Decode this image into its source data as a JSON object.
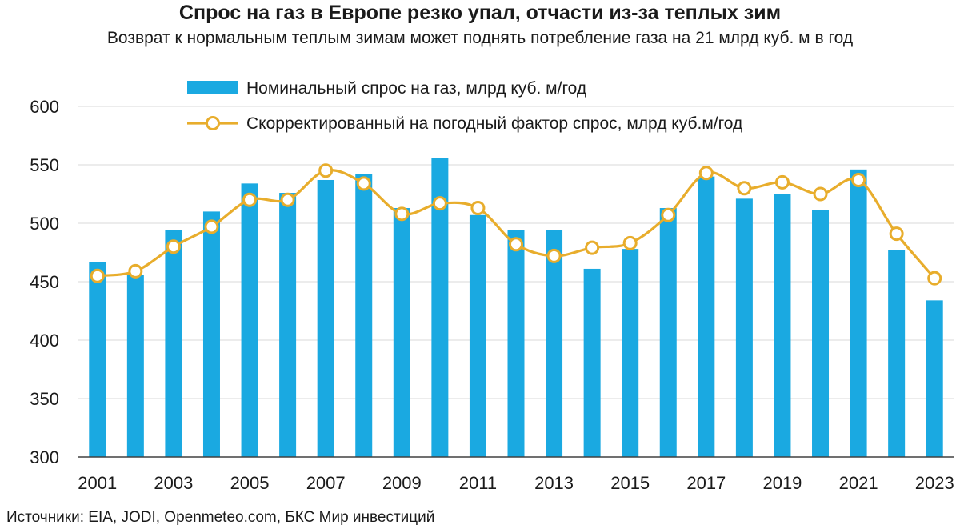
{
  "title": "Спрос на газ в Европе резко упал, отчасти из-за теплых зим",
  "subtitle": "Возврат к нормальным теплым зимам может поднять потребление газа на 21 млрд куб. м в год",
  "source": "Источники: EIA, JODI, Openmeteo.com, БКС Мир инвестиций",
  "colors": {
    "bar": "#1aa9e1",
    "line": "#e8ad2c",
    "marker_fill": "#ffffff",
    "grid": "#d9d9d9"
  },
  "chart_data": {
    "type": "bar",
    "x": [
      2001,
      2002,
      2003,
      2004,
      2005,
      2006,
      2007,
      2008,
      2009,
      2010,
      2011,
      2012,
      2013,
      2014,
      2015,
      2016,
      2017,
      2018,
      2019,
      2020,
      2021,
      2022,
      2023
    ],
    "x_tick_labels": [
      "2001",
      "2003",
      "2005",
      "2007",
      "2009",
      "2011",
      "2013",
      "2015",
      "2017",
      "2019",
      "2021",
      "2023"
    ],
    "y_ticks": [
      300,
      350,
      400,
      450,
      500,
      550,
      600
    ],
    "ylim": [
      300,
      600
    ],
    "grid": true,
    "legend_position": "top",
    "series": [
      {
        "name": "Номинальный спрос на газ, млрд куб. м/год",
        "type": "bar",
        "values": [
          467,
          456,
          494,
          510,
          534,
          526,
          537,
          542,
          513,
          556,
          507,
          494,
          494,
          461,
          478,
          513,
          540,
          521,
          525,
          511,
          546,
          477,
          434
        ]
      },
      {
        "name": "Скорректированный на погодный фактор спрос, млрд куб.м/год",
        "type": "line",
        "values": [
          455,
          459,
          480,
          497,
          520,
          520,
          545,
          534,
          508,
          517,
          513,
          482,
          472,
          479,
          483,
          507,
          543,
          530,
          535,
          525,
          537,
          491,
          453
        ]
      }
    ]
  }
}
